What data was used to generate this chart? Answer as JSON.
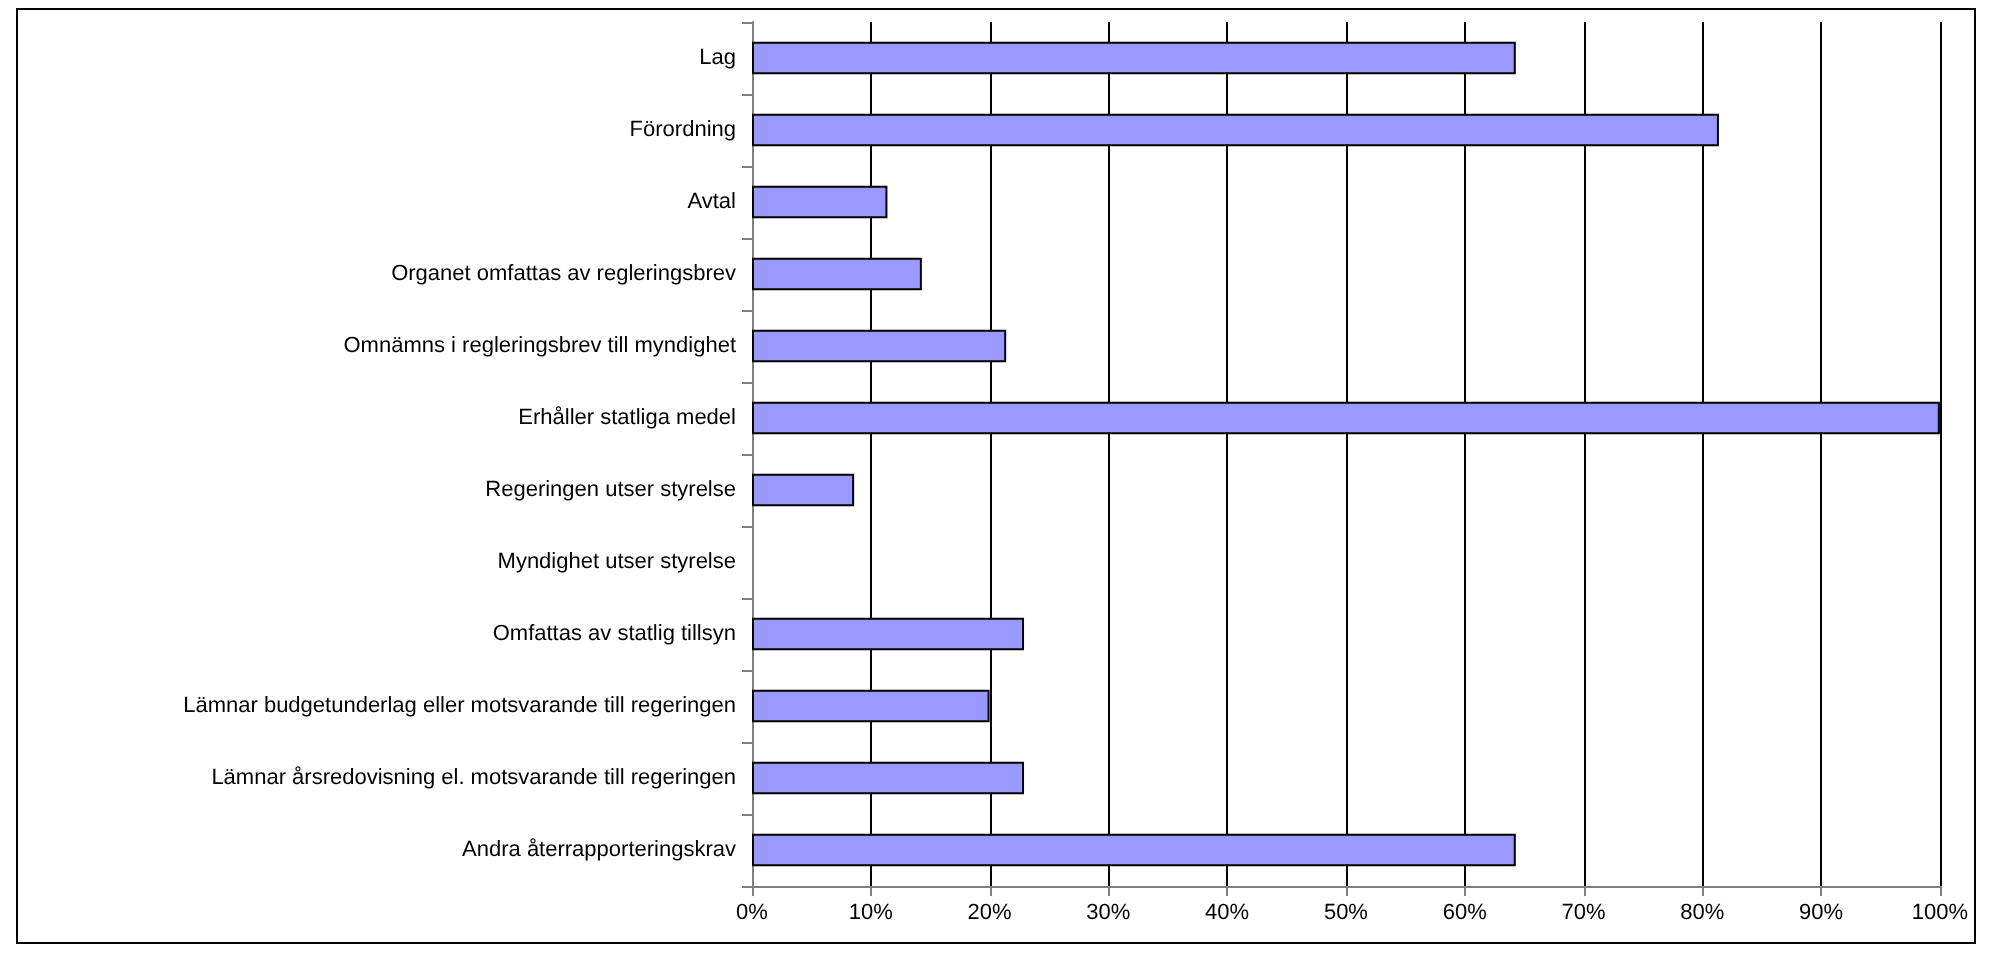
{
  "chart_data": {
    "type": "bar",
    "orientation": "horizontal",
    "categories": [
      "Lag",
      "Förordning",
      "Avtal",
      "Organet omfattas av regleringsbrev",
      "Omnämns i regleringsbrev till myndighet",
      "Erhåller statliga medel",
      "Regeringen utser styrelse",
      "Myndighet utser styrelse",
      "Omfattas av statlig tillsyn",
      "Lämnar budgetunderlag eller motsvarande till regeringen",
      "Lämnar årsredovisning el. motsvarande till regeringen",
      "Andra återrapporteringskrav"
    ],
    "values": [
      64.3,
      81.4,
      11.4,
      14.3,
      21.4,
      100,
      8.6,
      0,
      22.9,
      20,
      22.9,
      64.3
    ],
    "color": "#9999ff",
    "xlim": [
      0,
      100
    ],
    "xticks": [
      {
        "value": 0,
        "label": "0%"
      },
      {
        "value": 10,
        "label": "10%"
      },
      {
        "value": 20,
        "label": "20%"
      },
      {
        "value": 30,
        "label": "30%"
      },
      {
        "value": 40,
        "label": "40%"
      },
      {
        "value": 50,
        "label": "50%"
      },
      {
        "value": 60,
        "label": "60%"
      },
      {
        "value": 70,
        "label": "70%"
      },
      {
        "value": 80,
        "label": "80%"
      },
      {
        "value": 90,
        "label": "90%"
      },
      {
        "value": 100,
        "label": "100%"
      }
    ],
    "grid": "x"
  }
}
